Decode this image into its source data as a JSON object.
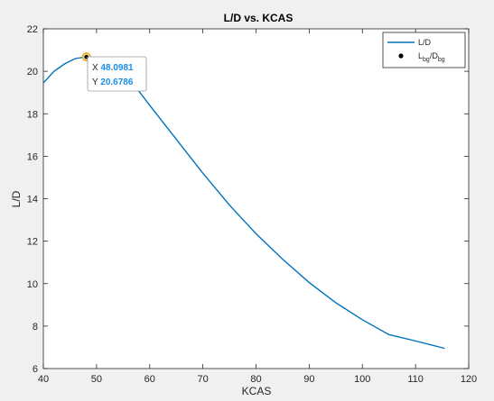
{
  "chart_data": {
    "type": "line",
    "title": "L/D vs. KCAS",
    "xlabel": "KCAS",
    "ylabel": "L/D",
    "xlim": [
      40,
      120
    ],
    "ylim": [
      6,
      22
    ],
    "xticks": [
      "40",
      "50",
      "60",
      "70",
      "80",
      "90",
      "100",
      "110",
      "120"
    ],
    "yticks": [
      "6",
      "8",
      "10",
      "12",
      "14",
      "16",
      "18",
      "20",
      "22"
    ],
    "grid": false,
    "legend": {
      "placement": "top-right"
    },
    "series": [
      {
        "name": "L/D",
        "color": "#0072bd",
        "x": [
          40,
          42,
          44,
          46,
          48.1,
          50,
          52,
          54,
          56,
          58,
          60,
          65,
          70,
          75,
          80,
          85,
          90,
          95,
          100,
          105,
          110,
          115.5
        ],
        "y": [
          19.45,
          20.0,
          20.35,
          20.6,
          20.68,
          20.6,
          20.35,
          20.0,
          19.6,
          19.05,
          18.4,
          16.8,
          15.2,
          13.7,
          12.35,
          11.15,
          10.05,
          9.1,
          8.3,
          7.6,
          7.3,
          6.95
        ]
      }
    ],
    "marker": {
      "name_main": "L",
      "name_main_sub": "bg",
      "name_sep": "/D",
      "name_sep_sub": "bg",
      "x": 48.0981,
      "y": 20.6786,
      "color": "#000000"
    },
    "datatip": {
      "x_label": "X",
      "x_value": "48.0981",
      "y_label": "Y",
      "y_value": "20.6786"
    }
  }
}
